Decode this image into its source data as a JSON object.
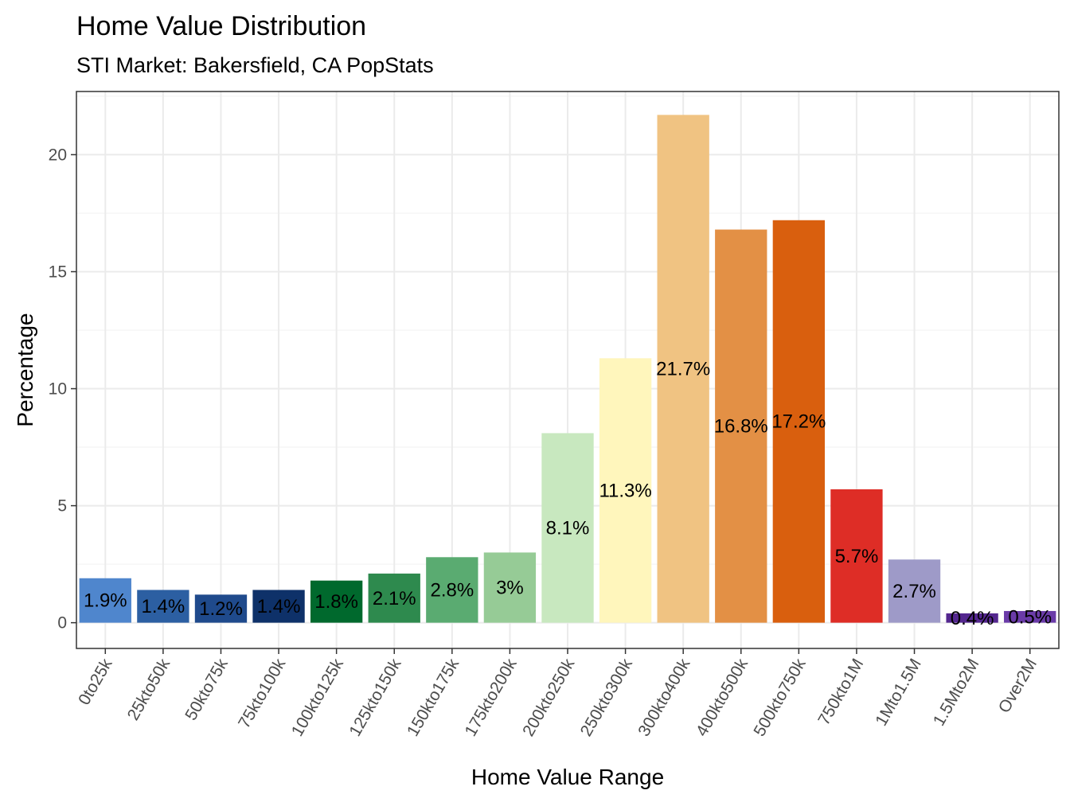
{
  "chart_data": {
    "type": "bar",
    "title": "Home Value Distribution",
    "subtitle": "STI Market: Bakersfield, CA PopStats",
    "xlabel": "Home Value Range",
    "ylabel": "Percentage",
    "ylim": [
      -1.1,
      22.7
    ],
    "yticks": [
      0,
      5,
      10,
      15,
      20
    ],
    "ytick_labels": [
      "0",
      "5",
      "10",
      "15",
      "20"
    ],
    "grid": true,
    "legend": "none",
    "categories": [
      "0to25k",
      "25kto50k",
      "50kto75k",
      "75kto100k",
      "100kto125k",
      "125kto150k",
      "150kto175k",
      "175kto200k",
      "200kto250k",
      "250kto300k",
      "300kto400k",
      "400kto500k",
      "500kto750k",
      "750kto1M",
      "1Mto1.5M",
      "1.5Mto2M",
      "Over2M"
    ],
    "values": [
      1.9,
      1.4,
      1.2,
      1.4,
      1.8,
      2.1,
      2.8,
      3.0,
      8.1,
      11.3,
      21.7,
      16.8,
      17.2,
      5.7,
      2.7,
      0.4,
      0.5
    ],
    "data_labels": [
      "1.9%",
      "1.4%",
      "1.2%",
      "1.4%",
      "1.8%",
      "2.1%",
      "2.8%",
      "3%",
      "8.1%",
      "11.3%",
      "21.7%",
      "16.8%",
      "17.2%",
      "5.7%",
      "2.7%",
      "0.4%",
      "0.5%"
    ],
    "colors": [
      "#4f86cd",
      "#2c5fa2",
      "#1f4a8c",
      "#0e3169",
      "#00692d",
      "#2e8a4e",
      "#5aab71",
      "#96cb96",
      "#c8e8bf",
      "#fff6bc",
      "#f0c382",
      "#e39045",
      "#d95f0e",
      "#de2d26",
      "#9e9ac8",
      "#54278f",
      "#6a3ba8"
    ]
  }
}
